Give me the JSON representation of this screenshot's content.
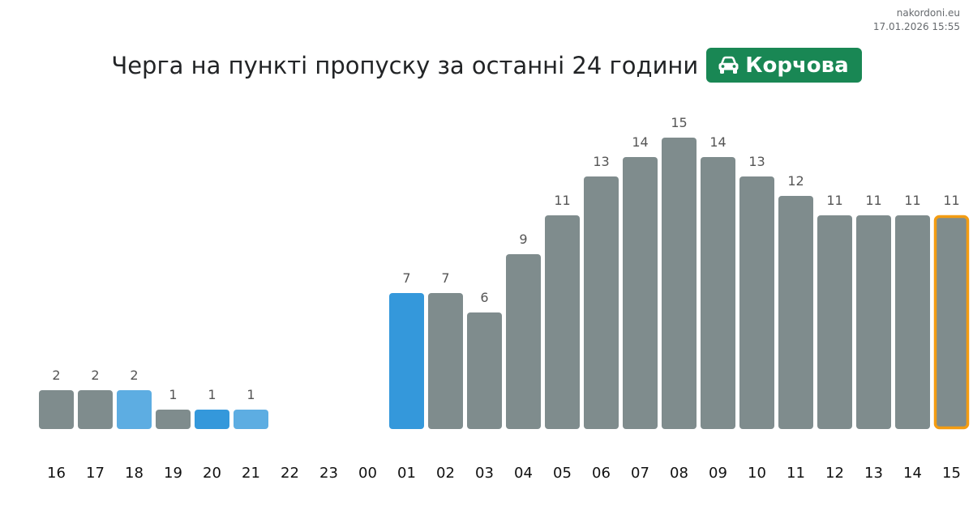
{
  "watermark": {
    "site": "nakordoni.eu",
    "timestamp": "17.01.2026 15:55"
  },
  "header": {
    "title": "Черга на пункті пропуску за останні 24 години",
    "location": "Корчова",
    "location_icon": "car-icon",
    "badge_color": "#198754"
  },
  "chart_data": {
    "type": "bar",
    "title": "Черга на пункті пропуску за останні 24 години",
    "xlabel": "",
    "ylabel": "",
    "ylim": [
      0,
      15
    ],
    "grid": false,
    "categories": [
      "16",
      "17",
      "18",
      "19",
      "20",
      "21",
      "22",
      "23",
      "00",
      "01",
      "02",
      "03",
      "04",
      "05",
      "06",
      "07",
      "08",
      "09",
      "10",
      "11",
      "12",
      "13",
      "14",
      "15"
    ],
    "values": [
      2,
      2,
      2,
      1,
      1,
      1,
      null,
      null,
      null,
      7,
      7,
      6,
      9,
      11,
      13,
      14,
      15,
      14,
      13,
      12,
      11,
      11,
      11,
      11
    ],
    "bar_colors": [
      "#7f8c8d",
      "#7f8c8d",
      "#5dade2",
      "#7f8c8d",
      "#3498db",
      "#5dade2",
      "#7f8c8d",
      "#7f8c8d",
      "#7f8c8d",
      "#3498db",
      "#7f8c8d",
      "#7f8c8d",
      "#7f8c8d",
      "#7f8c8d",
      "#7f8c8d",
      "#7f8c8d",
      "#7f8c8d",
      "#7f8c8d",
      "#7f8c8d",
      "#7f8c8d",
      "#7f8c8d",
      "#7f8c8d",
      "#7f8c8d",
      "#7f8c8d"
    ],
    "highlighted_category": "15",
    "highlight_color": "#f39c12"
  }
}
